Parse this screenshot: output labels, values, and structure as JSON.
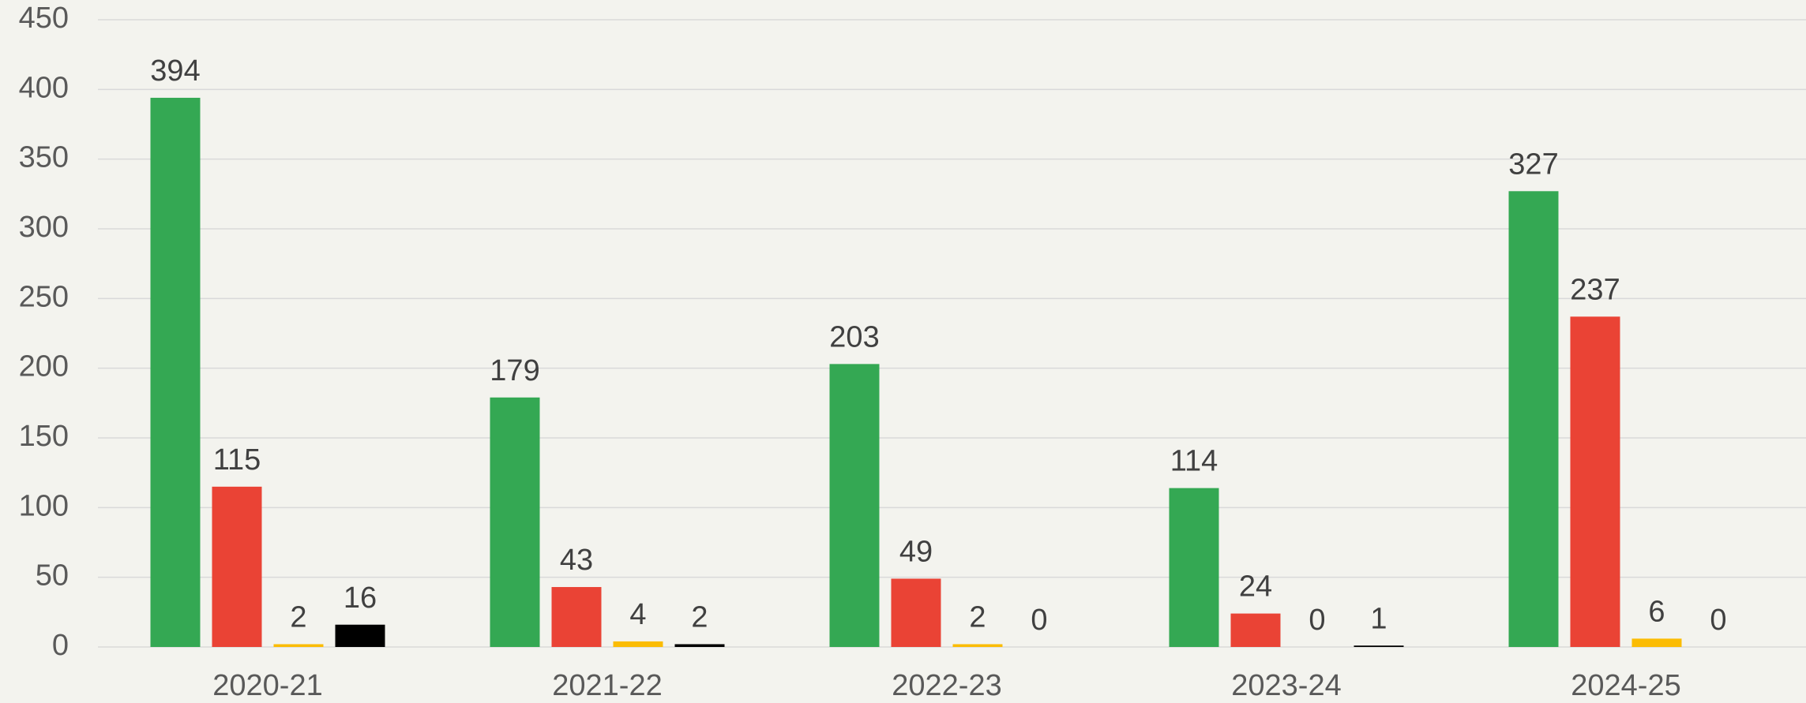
{
  "chart_data": {
    "type": "bar",
    "categories": [
      "2020-21",
      "2021-22",
      "2022-23",
      "2023-24",
      "2024-25"
    ],
    "series": [
      {
        "color": "#34a853",
        "values": [
          394,
          179,
          203,
          114,
          327
        ]
      },
      {
        "color": "#ea4335",
        "values": [
          115,
          43,
          49,
          24,
          237
        ]
      },
      {
        "color": "#fbbc04",
        "values": [
          2,
          4,
          2,
          0,
          6
        ]
      },
      {
        "color": "#000000",
        "values": [
          16,
          2,
          0,
          1,
          0
        ]
      }
    ],
    "ylim": [
      0,
      450
    ],
    "yticks": [
      0,
      50,
      100,
      150,
      200,
      250,
      300,
      350,
      400,
      450
    ],
    "grid": true
  }
}
